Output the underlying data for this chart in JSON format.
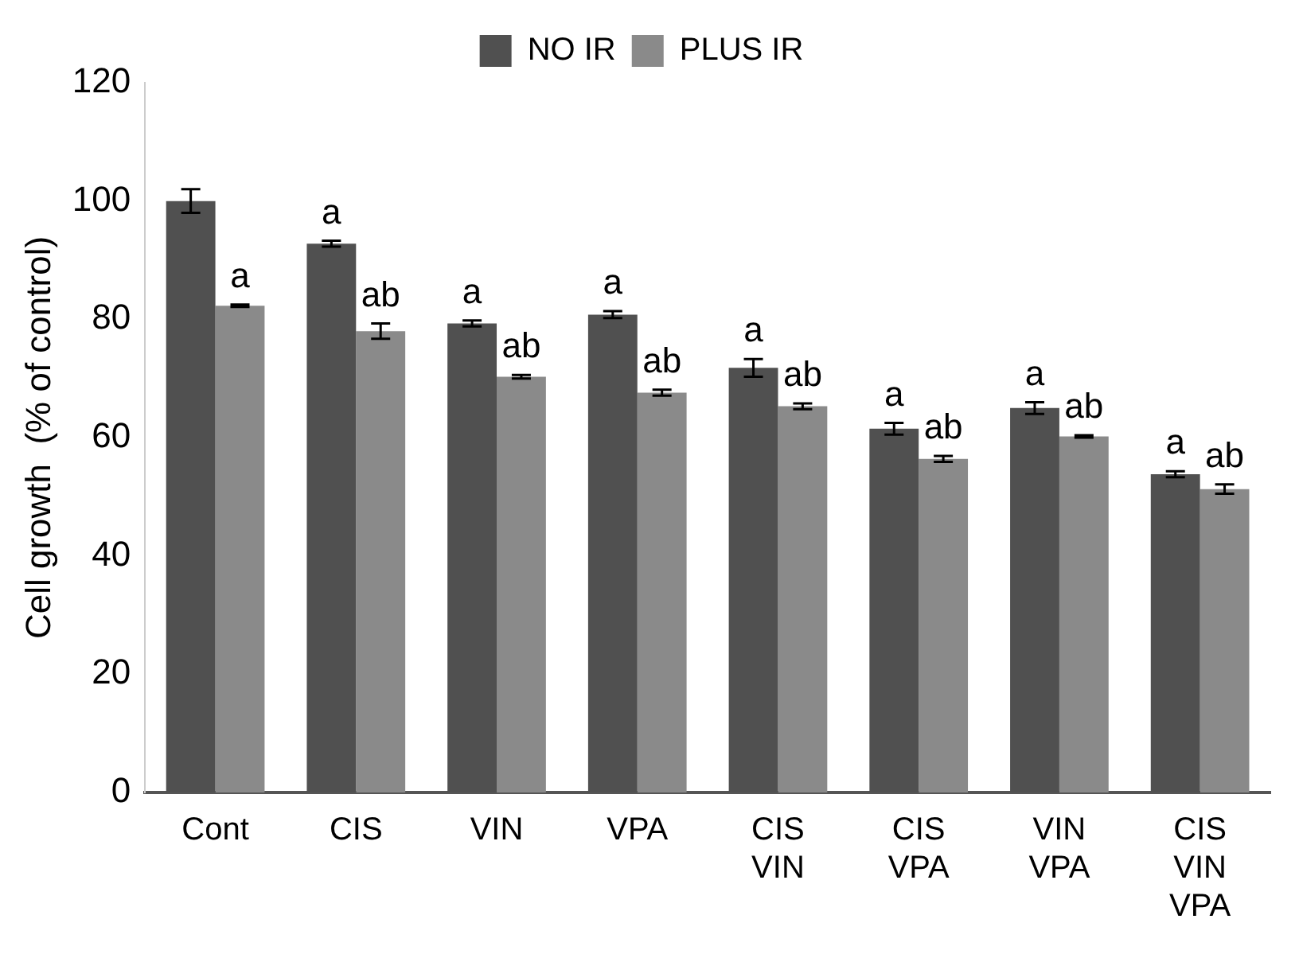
{
  "chart_data": {
    "type": "bar",
    "ylabel": "Cell growth  (% of control)",
    "categories": [
      "Cont",
      "CIS",
      "VIN",
      "VPA",
      "CIS\nVIN",
      "CIS\nVPA",
      "VIN\nVPA",
      "CIS\nVIN\nVPA"
    ],
    "series": [
      {
        "name": "NO IR",
        "color": "#505050",
        "values": [
          100,
          92.8,
          79.3,
          80.8,
          71.8,
          61.5,
          65,
          53.8
        ],
        "errors": [
          2,
          0.5,
          0.5,
          0.6,
          1.5,
          1,
          1,
          0.5
        ],
        "value_labels": [
          null,
          "a",
          "a",
          "a",
          "a",
          "a",
          "a",
          "a"
        ]
      },
      {
        "name": "PLUS IR",
        "color": "#8a8a8a",
        "values": [
          82.3,
          78,
          70.3,
          67.6,
          65.3,
          56.4,
          60.2,
          51.3
        ],
        "errors": [
          0.2,
          1.3,
          0.3,
          0.5,
          0.5,
          0.5,
          0.2,
          0.8
        ],
        "value_labels": [
          "a",
          "ab",
          "ab",
          "ab",
          "ab",
          "ab",
          "ab",
          "ab"
        ]
      }
    ],
    "ylim": [
      0,
      120
    ],
    "yticks": [
      0,
      20,
      40,
      60,
      80,
      100,
      120
    ],
    "grid": false,
    "legend": "top"
  }
}
